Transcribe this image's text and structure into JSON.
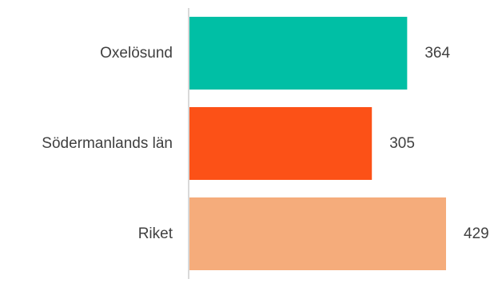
{
  "chart_data": {
    "type": "bar",
    "orientation": "horizontal",
    "categories": [
      "Oxelösund",
      "Södermanlands län",
      "Riket"
    ],
    "values": [
      364,
      305,
      429
    ],
    "colors": [
      "#00BFA5",
      "#FC5117",
      "#F5AC7B"
    ],
    "axis_color": "#D9D9D9",
    "label_color": "#404040",
    "xlim": [
      0,
      429
    ],
    "grid": false,
    "legend": "none",
    "data_labels": true
  }
}
